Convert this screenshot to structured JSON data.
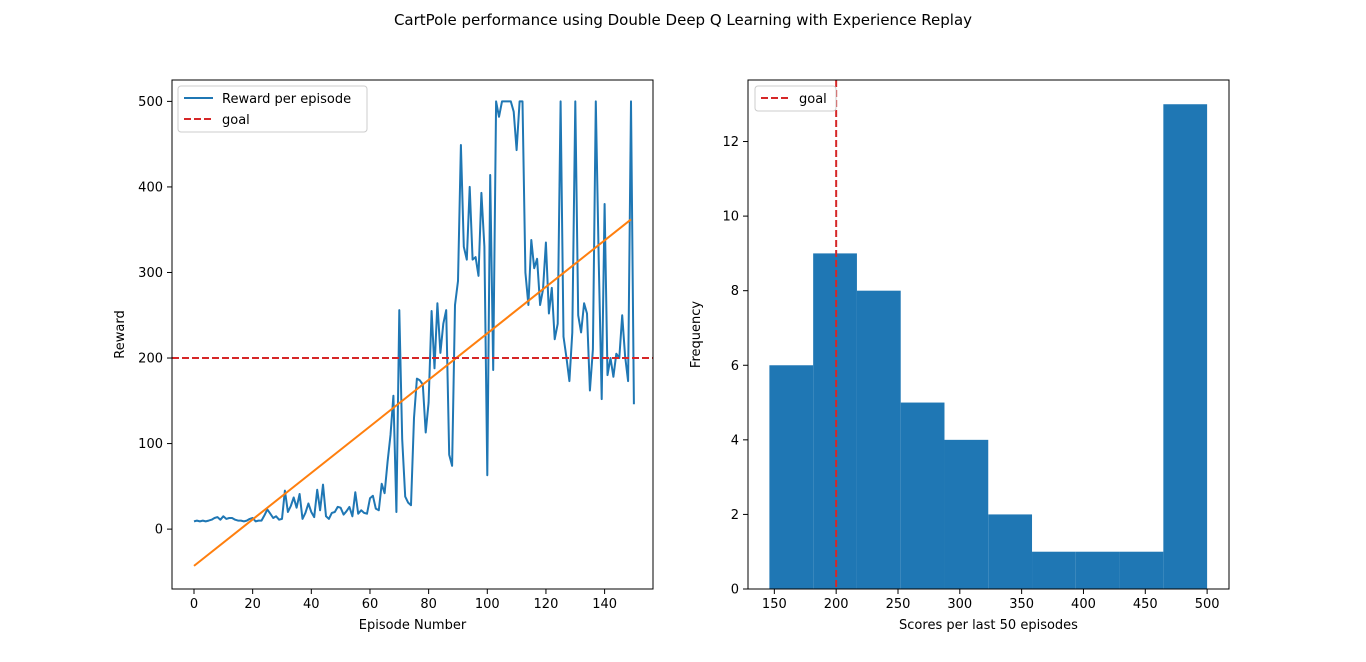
{
  "figure": {
    "title": "CartPole performance using Double Deep Q Learning with Experience Replay"
  },
  "colors": {
    "reward_line": "#1f77b4",
    "trend_line": "#ff7f0e",
    "goal_line": "#d62728",
    "hist_bar": "#1f77b4"
  },
  "chart_data": [
    {
      "type": "line",
      "xlabel": "Episode Number",
      "ylabel": "Reward",
      "xlim": [
        -7.5,
        156.5
      ],
      "ylim": [
        -70,
        525
      ],
      "xticks": [
        0,
        20,
        40,
        60,
        80,
        100,
        120,
        140
      ],
      "yticks": [
        0,
        100,
        200,
        300,
        400,
        500
      ],
      "legend_position": "top-left",
      "grid": false,
      "series": [
        {
          "name": "Reward per episode",
          "x_start": 0,
          "x_step": 1,
          "values": [
            9,
            10,
            9,
            10,
            9,
            10,
            11,
            13,
            14,
            11,
            15,
            12,
            13,
            13,
            11,
            10,
            10,
            9,
            10,
            12,
            13,
            9,
            10,
            10,
            16,
            23,
            18,
            13,
            15,
            11,
            12,
            45,
            20,
            27,
            37,
            25,
            41,
            12,
            19,
            30,
            20,
            14,
            46,
            22,
            52,
            15,
            12,
            19,
            20,
            26,
            25,
            17,
            21,
            26,
            15,
            43,
            18,
            22,
            19,
            18,
            36,
            39,
            24,
            22,
            53,
            42,
            79,
            110,
            156,
            20,
            256,
            105,
            38,
            31,
            28,
            130,
            176,
            174,
            169,
            113,
            148,
            255,
            188,
            264,
            206,
            240,
            256,
            87,
            74,
            262,
            290,
            449,
            330,
            315,
            400,
            315,
            318,
            296,
            393,
            330,
            63,
            414,
            186,
            500,
            482,
            500,
            500,
            500,
            500,
            488,
            443,
            500,
            500,
            300,
            262,
            338,
            305,
            316,
            262,
            280,
            335,
            252,
            282,
            222,
            240,
            500,
            225,
            200,
            173,
            230,
            500,
            250,
            230,
            264,
            252,
            162,
            210,
            500,
            315,
            152,
            380,
            180,
            200,
            178,
            205,
            200,
            250,
            202,
            173,
            500,
            146
          ]
        },
        {
          "name": "",
          "type": "trend",
          "x": [
            0,
            149
          ],
          "values": [
            -43,
            362
          ]
        },
        {
          "name": "goal",
          "type": "hline",
          "y": 200
        }
      ]
    },
    {
      "type": "bar",
      "subtype": "histogram",
      "xlabel": "Scores per last 50 episodes",
      "ylabel": "Frequency",
      "xlim": [
        128.7,
        517.7
      ],
      "ylim": [
        0,
        13.65
      ],
      "xticks": [
        150,
        200,
        250,
        300,
        350,
        400,
        450,
        500
      ],
      "yticks": [
        0,
        2,
        4,
        6,
        8,
        10,
        12
      ],
      "legend_position": "top-left",
      "grid": false,
      "bins": [
        146,
        181.4,
        216.8,
        252.2,
        287.6,
        323,
        358.4,
        393.8,
        429.2,
        464.6,
        500
      ],
      "counts": [
        6,
        9,
        8,
        5,
        4,
        2,
        1,
        1,
        1,
        13
      ],
      "goal": {
        "name": "goal",
        "x": 200
      }
    }
  ]
}
